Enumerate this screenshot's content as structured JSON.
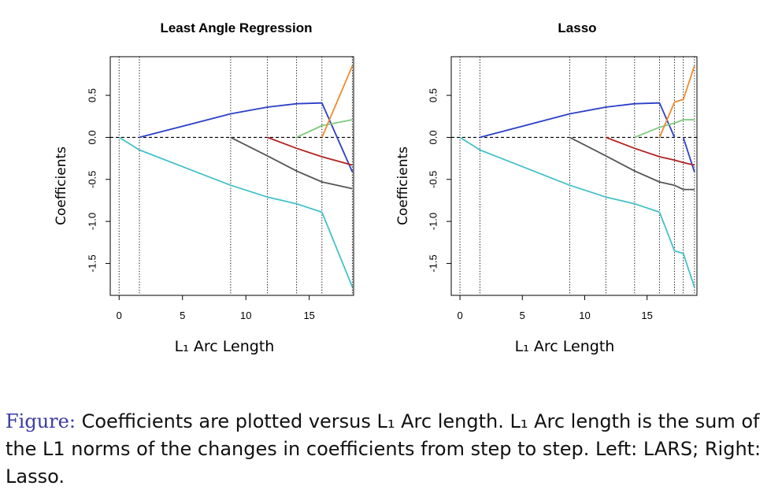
{
  "caption": {
    "label": "Figure:",
    "text": "Coefficients are plotted versus L₁ Arc length. L₁ Arc length is the sum of the L1 norms of the changes in coefficients from step to step. Left: LARS; Right: Lasso."
  },
  "chart_data": [
    {
      "type": "line",
      "title": "Least Angle Regression",
      "xlabel": "L₁ Arc Length",
      "ylabel": "Coefficients",
      "xlim": [
        -0.7,
        18.5
      ],
      "ylim": [
        -1.88,
        0.96
      ],
      "x_ticks": [
        0,
        5,
        10,
        15
      ],
      "x_tick_labels": [
        "0",
        "5",
        "10",
        "15"
      ],
      "y_ticks": [
        -1.5,
        -1.0,
        -0.5,
        0.0,
        0.5
      ],
      "y_tick_labels": [
        "-1.5",
        "-1.0",
        "-0.5",
        "0.0",
        "0.5"
      ],
      "step_lines": [
        0,
        1.6,
        8.8,
        11.7,
        14.0,
        16.0,
        18.4
      ],
      "zero_line": true,
      "series": [
        {
          "color": "#45c1c8",
          "x": [
            0,
            1.6,
            8.8,
            11.7,
            14.0,
            16.0,
            18.4
          ],
          "y": [
            0,
            -0.15,
            -0.57,
            -0.71,
            -0.79,
            -0.89,
            -1.78
          ]
        },
        {
          "color": "#2b3fc8",
          "x": [
            1.6,
            8.8,
            11.7,
            14.0,
            16.0,
            18.4
          ],
          "y": [
            0,
            0.28,
            0.36,
            0.4,
            0.41,
            -0.41
          ]
        },
        {
          "color": "#555555",
          "x": [
            8.8,
            11.7,
            14.0,
            16.0,
            18.4
          ],
          "y": [
            0,
            -0.22,
            -0.4,
            -0.53,
            -0.61
          ]
        },
        {
          "color": "#b22222",
          "x": [
            11.7,
            14.0,
            16.0,
            18.4
          ],
          "y": [
            0,
            -0.13,
            -0.23,
            -0.33
          ]
        },
        {
          "color": "#7fc97f",
          "x": [
            14.0,
            16.0,
            18.4
          ],
          "y": [
            0,
            0.14,
            0.21
          ]
        },
        {
          "color": "#f08a2d",
          "x": [
            16.0,
            18.4
          ],
          "y": [
            0,
            0.85
          ]
        }
      ]
    },
    {
      "type": "line",
      "title": "Lasso",
      "xlabel": "L₁ Arc Length",
      "ylabel": "Coefficients",
      "xlim": [
        -0.7,
        19.0
      ],
      "ylim": [
        -1.88,
        0.96
      ],
      "x_ticks": [
        0,
        5,
        10,
        15
      ],
      "x_tick_labels": [
        "0",
        "5",
        "10",
        "15"
      ],
      "y_ticks": [
        -1.5,
        -1.0,
        -0.5,
        0.0,
        0.5
      ],
      "y_tick_labels": [
        "-1.5",
        "-1.0",
        "-0.5",
        "0.0",
        "0.5"
      ],
      "step_lines": [
        0,
        1.6,
        8.8,
        11.7,
        14.0,
        16.0,
        17.2,
        17.9,
        18.8
      ],
      "zero_line": true,
      "series": [
        {
          "color": "#45c1c8",
          "x": [
            0,
            1.6,
            8.8,
            11.7,
            14.0,
            16.0,
            17.2,
            17.9,
            18.8
          ],
          "y": [
            0,
            -0.15,
            -0.57,
            -0.71,
            -0.79,
            -0.89,
            -1.35,
            -1.38,
            -1.78
          ]
        },
        {
          "color": "#2b3fc8",
          "x": [
            1.6,
            8.8,
            11.7,
            14.0,
            16.0,
            17.2
          ],
          "y": [
            0,
            0.28,
            0.36,
            0.4,
            0.41,
            0
          ]
        },
        {
          "color": "#2b3fc8",
          "x": [
            17.9,
            18.8
          ],
          "y": [
            0,
            -0.41
          ]
        },
        {
          "color": "#555555",
          "x": [
            8.8,
            11.7,
            14.0,
            16.0,
            17.2,
            17.9,
            18.8
          ],
          "y": [
            0,
            -0.22,
            -0.4,
            -0.53,
            -0.57,
            -0.62,
            -0.62
          ]
        },
        {
          "color": "#b22222",
          "x": [
            11.7,
            14.0,
            16.0,
            17.2,
            17.9,
            18.8
          ],
          "y": [
            0,
            -0.13,
            -0.23,
            -0.27,
            -0.3,
            -0.33
          ]
        },
        {
          "color": "#7fc97f",
          "x": [
            14.0,
            16.0,
            17.2,
            17.9,
            18.8
          ],
          "y": [
            0,
            0.12,
            0.17,
            0.21,
            0.21
          ]
        },
        {
          "color": "#f08a2d",
          "x": [
            16.0,
            17.2,
            17.9,
            18.8
          ],
          "y": [
            0,
            0.42,
            0.45,
            0.85
          ]
        }
      ]
    }
  ]
}
